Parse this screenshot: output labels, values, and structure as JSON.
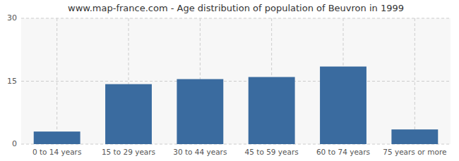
{
  "chart_data": {
    "type": "bar",
    "title": "www.map-france.com - Age distribution of population of Beuvron in 1999",
    "categories": [
      "0 to 14 years",
      "15 to 29 years",
      "30 to 44 years",
      "45 to 59 years",
      "60 to 74 years",
      "75 years or more"
    ],
    "values": [
      3.0,
      14.3,
      15.5,
      16.0,
      18.5,
      3.5
    ],
    "color": "#3a6b9f",
    "ylim": [
      0,
      30
    ],
    "yticks": [
      0,
      15,
      30
    ],
    "grid": true
  }
}
